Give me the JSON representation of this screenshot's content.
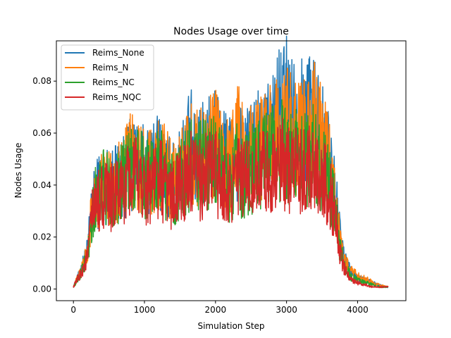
{
  "chart_data": {
    "type": "line",
    "title": "Nodes Usage over time",
    "xlabel": "Simulation Step",
    "ylabel": "Nodes Usage",
    "xlim": [
      -240,
      4680
    ],
    "ylim": [
      -0.0045,
      0.0955
    ],
    "xticks": [
      0,
      1000,
      2000,
      3000,
      4000
    ],
    "yticks": [
      0.0,
      0.02,
      0.04,
      0.06,
      0.08
    ],
    "ytick_labels": [
      "0.00",
      "0.02",
      "0.04",
      "0.06",
      "0.08"
    ],
    "grid": false,
    "legend": "upper-left",
    "series": [
      {
        "name": "Reims_None",
        "color": "#1f77b4",
        "x": [
          0,
          100,
          200,
          250,
          300,
          400,
          500,
          600,
          700,
          800,
          900,
          1000,
          1100,
          1200,
          1300,
          1400,
          1500,
          1600,
          1650,
          1700,
          1800,
          1900,
          2000,
          2100,
          2200,
          2300,
          2400,
          2500,
          2600,
          2700,
          2800,
          2900,
          3000,
          3100,
          3200,
          3300,
          3400,
          3500,
          3600,
          3700,
          3750,
          3800,
          3900,
          4000,
          4100,
          4200,
          4300,
          4400,
          4430
        ],
        "y": [
          0.001,
          0.008,
          0.018,
          0.035,
          0.042,
          0.05,
          0.048,
          0.05,
          0.052,
          0.058,
          0.06,
          0.055,
          0.058,
          0.06,
          0.055,
          0.05,
          0.058,
          0.062,
          0.07,
          0.06,
          0.065,
          0.068,
          0.07,
          0.062,
          0.058,
          0.065,
          0.06,
          0.066,
          0.068,
          0.072,
          0.075,
          0.082,
          0.088,
          0.08,
          0.078,
          0.082,
          0.085,
          0.07,
          0.06,
          0.04,
          0.025,
          0.015,
          0.008,
          0.005,
          0.004,
          0.003,
          0.002,
          0.001,
          0.001
        ]
      },
      {
        "name": "Reims_N",
        "color": "#ff7f0e",
        "x": [
          0,
          100,
          200,
          250,
          300,
          400,
          500,
          600,
          700,
          800,
          900,
          1000,
          1100,
          1200,
          1300,
          1400,
          1500,
          1600,
          1650,
          1700,
          1800,
          1900,
          2000,
          2100,
          2200,
          2300,
          2400,
          2500,
          2600,
          2700,
          2800,
          2900,
          3000,
          3100,
          3200,
          3300,
          3400,
          3500,
          3600,
          3700,
          3750,
          3800,
          3900,
          4000,
          4100,
          4200,
          4300,
          4400,
          4430
        ],
        "y": [
          0.001,
          0.008,
          0.017,
          0.034,
          0.04,
          0.048,
          0.047,
          0.05,
          0.052,
          0.06,
          0.058,
          0.054,
          0.056,
          0.06,
          0.055,
          0.05,
          0.056,
          0.06,
          0.065,
          0.06,
          0.064,
          0.066,
          0.068,
          0.06,
          0.056,
          0.08,
          0.06,
          0.064,
          0.066,
          0.068,
          0.07,
          0.074,
          0.076,
          0.072,
          0.07,
          0.074,
          0.078,
          0.068,
          0.058,
          0.038,
          0.024,
          0.014,
          0.008,
          0.006,
          0.005,
          0.003,
          0.002,
          0.001,
          0.001
        ]
      },
      {
        "name": "Reims_NC",
        "color": "#2ca02c",
        "x": [
          0,
          100,
          200,
          250,
          300,
          400,
          500,
          600,
          700,
          800,
          900,
          1000,
          1100,
          1200,
          1300,
          1400,
          1500,
          1600,
          1650,
          1700,
          1800,
          1900,
          2000,
          2100,
          2200,
          2300,
          2400,
          2500,
          2600,
          2700,
          2800,
          2900,
          3000,
          3100,
          3200,
          3300,
          3400,
          3500,
          3600,
          3700,
          3750,
          3800,
          3900,
          4000,
          4100,
          4200,
          4300,
          4400,
          4430
        ],
        "y": [
          0.001,
          0.007,
          0.016,
          0.034,
          0.042,
          0.048,
          0.046,
          0.048,
          0.05,
          0.055,
          0.056,
          0.052,
          0.054,
          0.056,
          0.05,
          0.046,
          0.052,
          0.055,
          0.06,
          0.056,
          0.058,
          0.06,
          0.062,
          0.054,
          0.05,
          0.056,
          0.052,
          0.056,
          0.058,
          0.06,
          0.062,
          0.064,
          0.065,
          0.062,
          0.06,
          0.062,
          0.064,
          0.058,
          0.05,
          0.034,
          0.02,
          0.012,
          0.006,
          0.004,
          0.003,
          0.002,
          0.001,
          0.001,
          0.001
        ]
      },
      {
        "name": "Reims_NQC",
        "color": "#d62728",
        "x": [
          0,
          100,
          200,
          250,
          300,
          400,
          500,
          600,
          700,
          800,
          900,
          1000,
          1100,
          1200,
          1300,
          1400,
          1500,
          1600,
          1650,
          1700,
          1800,
          1900,
          2000,
          2100,
          2200,
          2300,
          2400,
          2500,
          2600,
          2700,
          2800,
          2900,
          3000,
          3100,
          3200,
          3300,
          3400,
          3500,
          3600,
          3700,
          3750,
          3800,
          3900,
          4000,
          4100,
          4200,
          4300,
          4400,
          4430
        ],
        "y": [
          0.001,
          0.007,
          0.015,
          0.032,
          0.038,
          0.044,
          0.042,
          0.044,
          0.046,
          0.05,
          0.052,
          0.048,
          0.05,
          0.052,
          0.048,
          0.044,
          0.048,
          0.05,
          0.054,
          0.05,
          0.052,
          0.054,
          0.055,
          0.05,
          0.048,
          0.052,
          0.05,
          0.052,
          0.054,
          0.055,
          0.056,
          0.058,
          0.058,
          0.056,
          0.054,
          0.056,
          0.058,
          0.052,
          0.046,
          0.032,
          0.018,
          0.01,
          0.005,
          0.003,
          0.002,
          0.001,
          0.001,
          0.001,
          0.001
        ]
      }
    ]
  }
}
